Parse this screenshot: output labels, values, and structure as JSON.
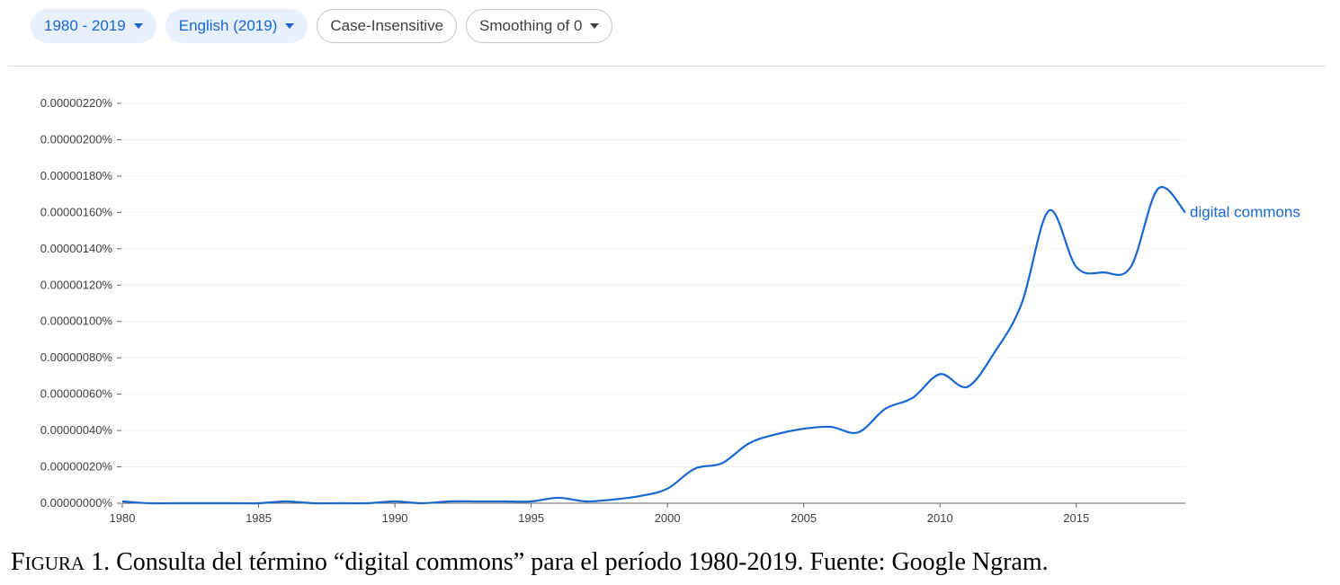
{
  "toolbar": {
    "range_label": "1980 - 2019",
    "corpus_label": "English (2019)",
    "case_label": "Case-Insensitive",
    "smoothing_label": "Smoothing of 0"
  },
  "colors": {
    "series": "#1967d2",
    "chip_active_bg": "#e8f0fe",
    "grid": "#f1f3f4",
    "axis": "#5f6368"
  },
  "chart_data": {
    "type": "line",
    "title": "",
    "xlabel": "",
    "ylabel": "",
    "xlim": [
      1980,
      2019
    ],
    "ylim": [
      0,
      2.2e-06
    ],
    "grid": true,
    "y_ticks": [
      {
        "value": 2.2e-06,
        "label": "0.00000220%"
      },
      {
        "value": 2e-06,
        "label": "0.00000200%"
      },
      {
        "value": 1.8e-06,
        "label": "0.00000180%"
      },
      {
        "value": 1.6e-06,
        "label": "0.00000160%"
      },
      {
        "value": 1.4e-06,
        "label": "0.00000140%"
      },
      {
        "value": 1.2e-06,
        "label": "0.00000120%"
      },
      {
        "value": 1e-06,
        "label": "0.00000100%"
      },
      {
        "value": 8e-07,
        "label": "0.00000080%"
      },
      {
        "value": 6e-07,
        "label": "0.00000060%"
      },
      {
        "value": 4e-07,
        "label": "0.00000040%"
      },
      {
        "value": 2e-07,
        "label": "0.00000020%"
      },
      {
        "value": 0.0,
        "label": "0.00000000%"
      }
    ],
    "x_ticks": [
      {
        "value": 1980,
        "label": "1980"
      },
      {
        "value": 1985,
        "label": "1985"
      },
      {
        "value": 1990,
        "label": "1990"
      },
      {
        "value": 1995,
        "label": "1995"
      },
      {
        "value": 2000,
        "label": "2000"
      },
      {
        "value": 2005,
        "label": "2005"
      },
      {
        "value": 2010,
        "label": "2010"
      },
      {
        "value": 2015,
        "label": "2015"
      }
    ],
    "series": [
      {
        "name": "digital commons",
        "x": [
          1980,
          1981,
          1982,
          1983,
          1984,
          1985,
          1986,
          1987,
          1988,
          1989,
          1990,
          1991,
          1992,
          1993,
          1994,
          1995,
          1996,
          1997,
          1998,
          1999,
          2000,
          2001,
          2002,
          2003,
          2004,
          2005,
          2006,
          2007,
          2008,
          2009,
          2010,
          2011,
          2012,
          2013,
          2014,
          2015,
          2016,
          2017,
          2018,
          2019
        ],
        "values": [
          1e-08,
          0.0,
          0.0,
          0.0,
          0.0,
          0.0,
          1e-08,
          0.0,
          0.0,
          0.0,
          1e-08,
          0.0,
          1e-08,
          1e-08,
          1e-08,
          1e-08,
          3e-08,
          1e-08,
          2e-08,
          4e-08,
          8e-08,
          1.9e-07,
          2.2e-07,
          3.3e-07,
          3.8e-07,
          4.1e-07,
          4.2e-07,
          3.9e-07,
          5.2e-07,
          5.8e-07,
          7.1e-07,
          6.4e-07,
          8.3e-07,
          1.1e-06,
          1.61e-06,
          1.3e-06,
          1.27e-06,
          1.3e-06,
          1.73e-06,
          1.6e-06
        ]
      }
    ]
  },
  "caption": {
    "figura_initial": "F",
    "figura_rest": "IGURA",
    "text": " 1. Consulta del término “digital commons” para el período 1980-2019. Fuente: Google Ngram."
  }
}
